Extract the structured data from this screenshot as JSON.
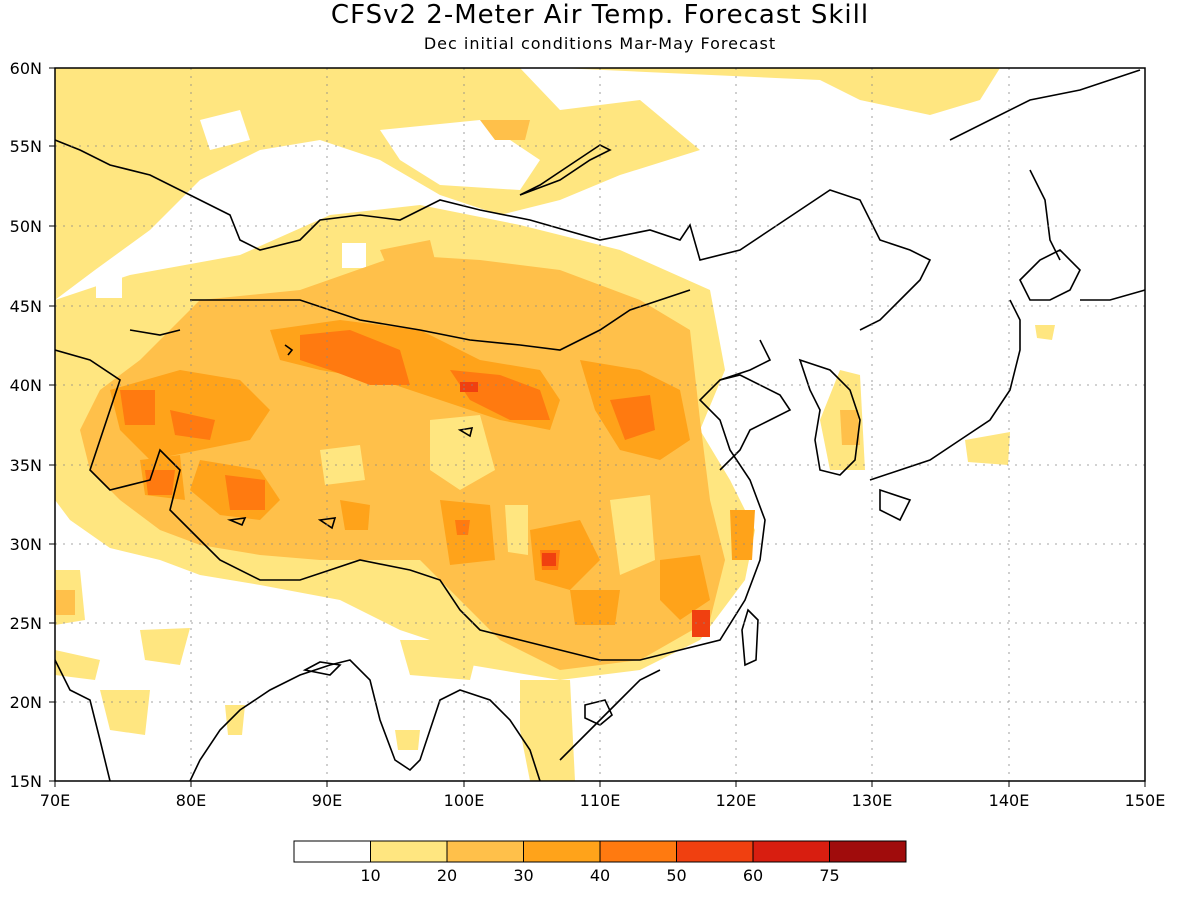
{
  "title": "CFSv2 2-Meter Air Temp. Forecast Skill",
  "subtitle": "Dec initial conditions  Mar-May Forecast",
  "lat_labels": [
    "60N",
    "55N",
    "50N",
    "45N",
    "40N",
    "35N",
    "30N",
    "25N",
    "20N",
    "15N"
  ],
  "lon_labels": [
    "70E",
    "80E",
    "90E",
    "100E",
    "110E",
    "120E",
    "130E",
    "140E",
    "150E"
  ],
  "colorbar": {
    "labels": [
      "10",
      "20",
      "30",
      "40",
      "50",
      "60",
      "75"
    ],
    "colors": [
      "#ffffff",
      "#ffe680",
      "#ffc04a",
      "#ffa31a",
      "#ff7a10",
      "#f04010",
      "#d81e10",
      "#a00c0c"
    ]
  },
  "map_extent": {
    "lon": [
      70,
      150
    ],
    "lat": [
      15,
      60
    ]
  }
}
